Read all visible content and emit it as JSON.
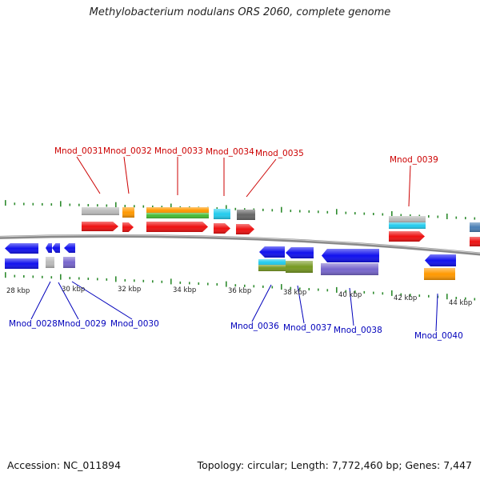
{
  "title": "Methylobacterium nodulans ORS 2060, complete genome",
  "footer": {
    "accession_label": "Accession:",
    "accession": "NC_011894",
    "topology_label": "Topology:",
    "topology": "circular",
    "length_label": "Length:",
    "length": "7,772,460 bp",
    "genes_label": "Genes:",
    "genes": "7,447"
  },
  "colors": {
    "top_label": "#cc0000",
    "bottom_label": "#0000bb",
    "tick": "#2e8b2e",
    "backbone": "#8a8a8a",
    "cds_forward": "#ee1111",
    "cds_reverse": "#1111ee",
    "grey": "#bbbbbb",
    "orange": "#ff9900",
    "green": "#44bb33",
    "cyan": "#22ccee",
    "darkgrey": "#666666",
    "olive": "#779922",
    "purple": "#7766cc",
    "steelblue": "#4a7fb5"
  },
  "scale": {
    "unit": "kbp",
    "labels": [
      "28 kbp",
      "30 kbp",
      "32 kbp",
      "34 kbp",
      "36 kbp",
      "38 kbp",
      "40 kbp",
      "42 kbp",
      "44 kbp"
    ]
  },
  "top_genes": [
    {
      "name": "Mnod_0031"
    },
    {
      "name": "Mnod_0032"
    },
    {
      "name": "Mnod_0033"
    },
    {
      "name": "Mnod_0034"
    },
    {
      "name": "Mnod_0035"
    },
    {
      "name": "Mnod_0039"
    }
  ],
  "bottom_genes": [
    {
      "name": "Mnod_0028"
    },
    {
      "name": "Mnod_0029"
    },
    {
      "name": "Mnod_0030"
    },
    {
      "name": "Mnod_0036"
    },
    {
      "name": "Mnod_0037"
    },
    {
      "name": "Mnod_0038"
    },
    {
      "name": "Mnod_0040"
    }
  ]
}
